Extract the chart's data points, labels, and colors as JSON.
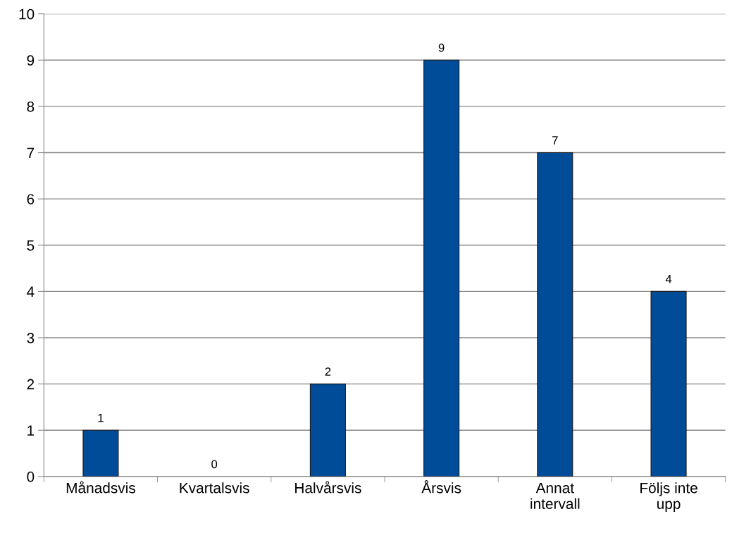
{
  "chart_data": {
    "type": "bar",
    "categories": [
      "Månadsvis",
      "Kvartalsvis",
      "Halvårsvis",
      "Årsvis",
      "Annat intervall",
      "Följs inte upp"
    ],
    "values": [
      1,
      0,
      2,
      9,
      7,
      4
    ],
    "color": "#004c99",
    "ylim": [
      0,
      10
    ],
    "yticks": [
      0,
      1,
      2,
      3,
      4,
      5,
      6,
      7,
      8,
      9,
      10
    ],
    "grid": "y",
    "data_labels": true
  }
}
